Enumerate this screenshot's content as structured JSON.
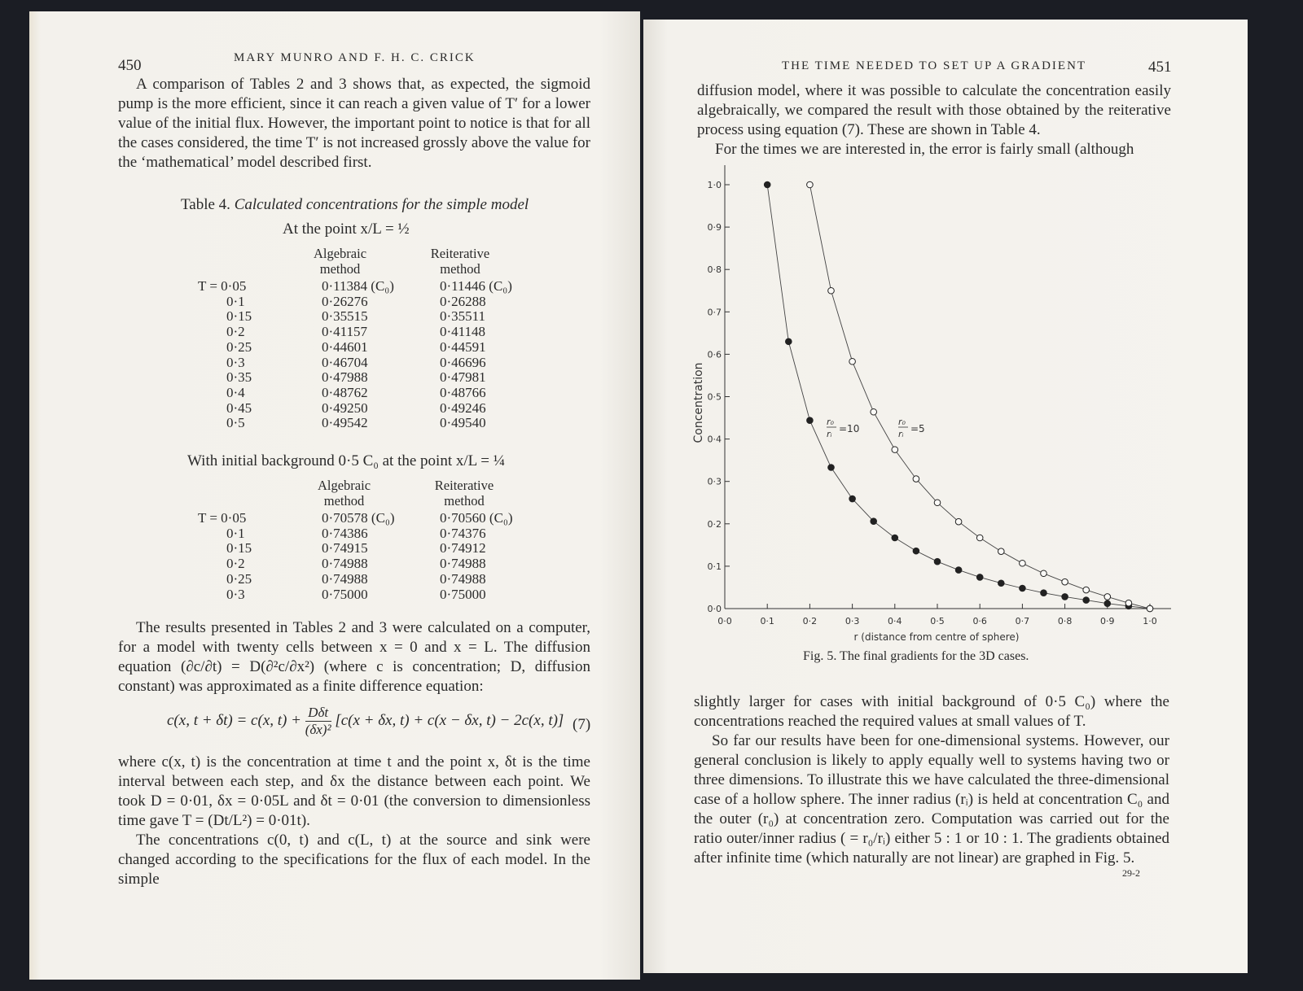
{
  "left_page": {
    "page_number": "450",
    "running_head": "MARY MUNRO AND F. H. C. CRICK",
    "para1": "A comparison of Tables 2 and 3 shows that, as expected, the sigmoid pump is the more efficient, since it can reach a given value of T′ for a lower value of the initial flux. However, the important point to notice is that for all the cases considered, the time T′ is not increased grossly above the value for the ‘mathematical’ model described first.",
    "table4": {
      "label": "Table 4.",
      "title": "Calculated concentrations for the simple model",
      "section1": {
        "heading": "At the point x/L = ½",
        "col_algebraic": "Algebraic method",
        "col_reiterative": "Reiterative method",
        "rows": [
          {
            "T": "T = 0·05",
            "alg": "0·11384 (C₀)",
            "rei": "0·11446 (C₀)"
          },
          {
            "T": "0·1",
            "alg": "0·26276",
            "rei": "0·26288"
          },
          {
            "T": "0·15",
            "alg": "0·35515",
            "rei": "0·35511"
          },
          {
            "T": "0·2",
            "alg": "0·41157",
            "rei": "0·41148"
          },
          {
            "T": "0·25",
            "alg": "0·44601",
            "rei": "0·44591"
          },
          {
            "T": "0·3",
            "alg": "0·46704",
            "rei": "0·46696"
          },
          {
            "T": "0·35",
            "alg": "0·47988",
            "rei": "0·47981"
          },
          {
            "T": "0·4",
            "alg": "0·48762",
            "rei": "0·48766"
          },
          {
            "T": "0·45",
            "alg": "0·49250",
            "rei": "0·49246"
          },
          {
            "T": "0·5",
            "alg": "0·49542",
            "rei": "0·49540"
          }
        ]
      },
      "section2": {
        "heading": "With initial background 0·5 C₀ at the point x/L = ¼",
        "col_algebraic": "Algebraic method",
        "col_reiterative": "Reiterative method",
        "rows": [
          {
            "T": "T = 0·05",
            "alg": "0·70578 (C₀)",
            "rei": "0·70560 (C₀)"
          },
          {
            "T": "0·1",
            "alg": "0·74386",
            "rei": "0·74376"
          },
          {
            "T": "0·15",
            "alg": "0·74915",
            "rei": "0·74912"
          },
          {
            "T": "0·2",
            "alg": "0·74988",
            "rei": "0·74988"
          },
          {
            "T": "0·25",
            "alg": "0·74988",
            "rei": "0·74988"
          },
          {
            "T": "0·3",
            "alg": "0·75000",
            "rei": "0·75000"
          }
        ]
      }
    },
    "para2": "The results presented in Tables 2 and 3 were calculated on a computer, for a model with twenty cells between x = 0 and x = L. The diffusion equation (∂c/∂t) = D(∂²c/∂x²) (where c is concentration; D, diffusion constant) was approximated as a finite difference equation:",
    "equation": {
      "lhs": "c(x, t + δt) = c(x, t) +",
      "frac_num": "Dδt",
      "frac_den": "(δx)²",
      "rhs": "[c(x + δx, t) + c(x − δx, t) − 2c(x, t)]",
      "number": "(7)"
    },
    "para3": "where c(x, t) is the concentration at time t and the point x, δt is the time interval between each step, and δx the distance between each point. We took D = 0·01, δx = 0·05L and δt = 0·01 (the conversion to dimensionless time gave T = (Dt/L²) = 0·01t).",
    "para4": "The concentrations c(0, t) and c(L, t) at the source and sink were changed according to the specifications for the flux of each model. In the simple"
  },
  "right_page": {
    "page_number": "451",
    "running_head": "THE TIME NEEDED TO SET UP A GRADIENT",
    "para1": "diffusion model, where it was possible to calculate the concentration easily algebraically, we compared the result with those obtained by the reiterative process using equation (7). These are shown in Table 4.",
    "para2": "For the times we are interested in, the error is fairly small (although",
    "figure_caption": "Fig. 5. The final gradients for the 3D cases.",
    "para3": "slightly larger for cases with initial background of 0·5 C₀) where the concentrations reached the required values at small values of T.",
    "para4": "So far our results have been for one-dimensional systems. However, our general conclusion is likely to apply equally well to systems having two or three dimensions. To illustrate this we have calculated the three-dimensional case of a hollow sphere. The inner radius (rᵢ) is held at concentration C₀ and the outer (r₀) at concentration zero. Computation was carried out for the ratio outer/inner radius ( = r₀/rᵢ) either 5 : 1 or 10 : 1. The gradients obtained after infinite time (which naturally are not linear) are graphed in Fig. 5.",
    "signature_mark": "29-2"
  },
  "chart_data": {
    "type": "line",
    "title": "",
    "xlabel": "r (distance from centre of sphere)",
    "ylabel": "Concentration",
    "xlim": [
      0,
      1.0
    ],
    "ylim": [
      0,
      1.0
    ],
    "x_ticks": [
      "0·0",
      "0·1",
      "0·2",
      "0·3",
      "0·4",
      "0·5",
      "0·6",
      "0·7",
      "0·8",
      "0·9",
      "1·0"
    ],
    "y_ticks": [
      "0·0",
      "0·1",
      "0·2",
      "0·3",
      "0·4",
      "0·5",
      "0·6",
      "0·7",
      "0·8",
      "0·9",
      "1·0"
    ],
    "grid": false,
    "series": [
      {
        "name": "r₀/rᵢ = 10",
        "label_num": "r₀",
        "label_den": "rᵢ",
        "label_val": "=10",
        "marker": "filled-circle",
        "x": [
          0.1,
          0.15,
          0.2,
          0.25,
          0.3,
          0.35,
          0.4,
          0.45,
          0.5,
          0.55,
          0.6,
          0.65,
          0.7,
          0.75,
          0.8,
          0.85,
          0.9,
          0.95,
          1.0
        ],
        "y": [
          1.0,
          0.63,
          0.444,
          0.333,
          0.259,
          0.206,
          0.167,
          0.136,
          0.111,
          0.091,
          0.074,
          0.06,
          0.048,
          0.037,
          0.028,
          0.02,
          0.012,
          0.006,
          0.0
        ]
      },
      {
        "name": "r₀/rᵢ = 5",
        "label_num": "r₀",
        "label_den": "rᵢ",
        "label_val": "=5",
        "marker": "open-circle",
        "x": [
          0.2,
          0.25,
          0.3,
          0.35,
          0.4,
          0.45,
          0.5,
          0.55,
          0.6,
          0.65,
          0.7,
          0.75,
          0.8,
          0.85,
          0.9,
          0.95,
          1.0
        ],
        "y": [
          1.0,
          0.75,
          0.583,
          0.464,
          0.375,
          0.306,
          0.25,
          0.205,
          0.167,
          0.135,
          0.107,
          0.083,
          0.063,
          0.044,
          0.028,
          0.013,
          0.0
        ]
      }
    ]
  }
}
